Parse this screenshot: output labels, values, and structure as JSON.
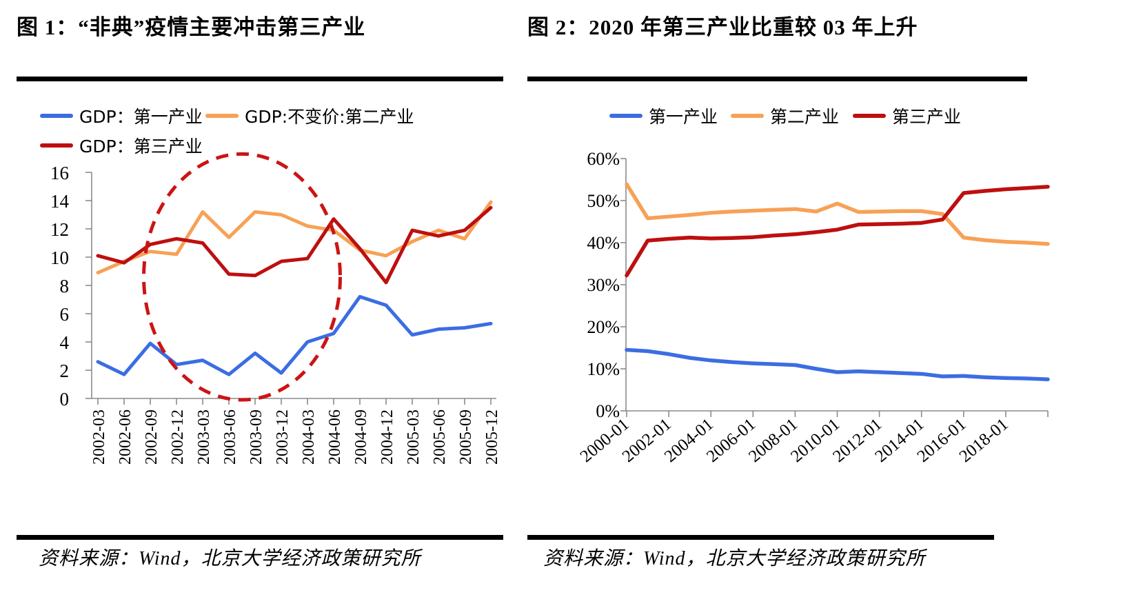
{
  "colors": {
    "blue": "#3B6DE3",
    "orange": "#F7A156",
    "red": "#BE0F0F",
    "annotation_red": "#CC1414",
    "axis_gray": "#8A8A8A",
    "bar_black": "#000000"
  },
  "chart_data": [
    {
      "id": "fig1",
      "type": "line",
      "title": "图 1：“非典”疫情主要冲击第三产业",
      "source": "资料来源：Wind，北京大学经济政策研究所",
      "categories": [
        "2002-03",
        "2002-06",
        "2002-09",
        "2002-12",
        "2003-03",
        "2003-06",
        "2003-09",
        "2003-12",
        "2004-03",
        "2004-06",
        "2004-09",
        "2004-12",
        "2005-03",
        "2005-06",
        "2005-09",
        "2005-12"
      ],
      "ylim": [
        0,
        16
      ],
      "ytick_step": 2,
      "ytick_format": "plain",
      "grid": false,
      "legend_position": "top-left, two rows",
      "series": [
        {
          "name": "GDP：第一产业",
          "color": "#3B6DE3",
          "values": [
            2.6,
            1.7,
            3.9,
            2.4,
            2.7,
            1.7,
            3.2,
            1.8,
            4.0,
            4.6,
            7.2,
            6.6,
            4.5,
            4.9,
            5.0,
            5.3
          ]
        },
        {
          "name": "GDP:不变价:第二产业",
          "color": "#F7A156",
          "values": [
            8.9,
            9.7,
            10.4,
            10.2,
            13.2,
            11.4,
            13.2,
            13.0,
            12.2,
            11.9,
            10.5,
            10.1,
            11.1,
            11.9,
            11.3,
            13.9
          ]
        },
        {
          "name": "GDP：第三产业",
          "color": "#BE0F0F",
          "values": [
            10.1,
            9.6,
            10.9,
            11.3,
            11.0,
            8.8,
            8.7,
            9.7,
            9.9,
            12.7,
            10.6,
            8.2,
            11.9,
            11.5,
            11.9,
            13.5
          ]
        }
      ],
      "annotation_ellipse": {
        "shape": "dashed-ellipse",
        "color": "#CC1414",
        "center_category_index": 5.5,
        "center_value": 8.6,
        "radius_categories": 3.75,
        "radius_value": 8.7
      }
    },
    {
      "id": "fig2",
      "type": "line",
      "title": "图 2：2020 年第三产业比重较 03 年上升",
      "source": "资料来源：Wind，北京大学经济政策研究所",
      "x_years": [
        2000,
        2001,
        2002,
        2003,
        2004,
        2005,
        2006,
        2007,
        2008,
        2009,
        2010,
        2011,
        2012,
        2013,
        2014,
        2015,
        2016,
        2017,
        2018,
        2019,
        2020
      ],
      "xtick_labels": [
        "2000-01",
        "2002-01",
        "2004-01",
        "2006-01",
        "2008-01",
        "2010-01",
        "2012-01",
        "2014-01",
        "2016-01",
        "2018-01"
      ],
      "ylim": [
        0,
        60
      ],
      "ytick_step": 10,
      "ytick_format": "percent",
      "grid": false,
      "legend_position": "top, single row",
      "series": [
        {
          "name": "第一产业",
          "color": "#3B6DE3",
          "values": [
            14.5,
            14.2,
            13.5,
            12.6,
            12.0,
            11.6,
            11.3,
            11.1,
            10.9,
            10.0,
            9.2,
            9.4,
            9.2,
            9.0,
            8.8,
            8.2,
            8.3,
            8.0,
            7.8,
            7.7,
            7.5
          ]
        },
        {
          "name": "第二产业",
          "color": "#F7A156",
          "values": [
            53.9,
            45.8,
            46.2,
            46.6,
            47.1,
            47.4,
            47.6,
            47.8,
            48.0,
            47.4,
            49.3,
            47.3,
            47.4,
            47.5,
            47.5,
            46.8,
            41.2,
            40.6,
            40.2,
            40.0,
            39.7
          ]
        },
        {
          "name": "第三产业",
          "color": "#BE0F0F",
          "values": [
            32.2,
            40.5,
            40.9,
            41.2,
            41.0,
            41.1,
            41.3,
            41.7,
            42.0,
            42.5,
            43.1,
            44.3,
            44.4,
            44.5,
            44.7,
            45.5,
            51.8,
            52.3,
            52.7,
            53.0,
            53.3
          ]
        }
      ]
    }
  ]
}
